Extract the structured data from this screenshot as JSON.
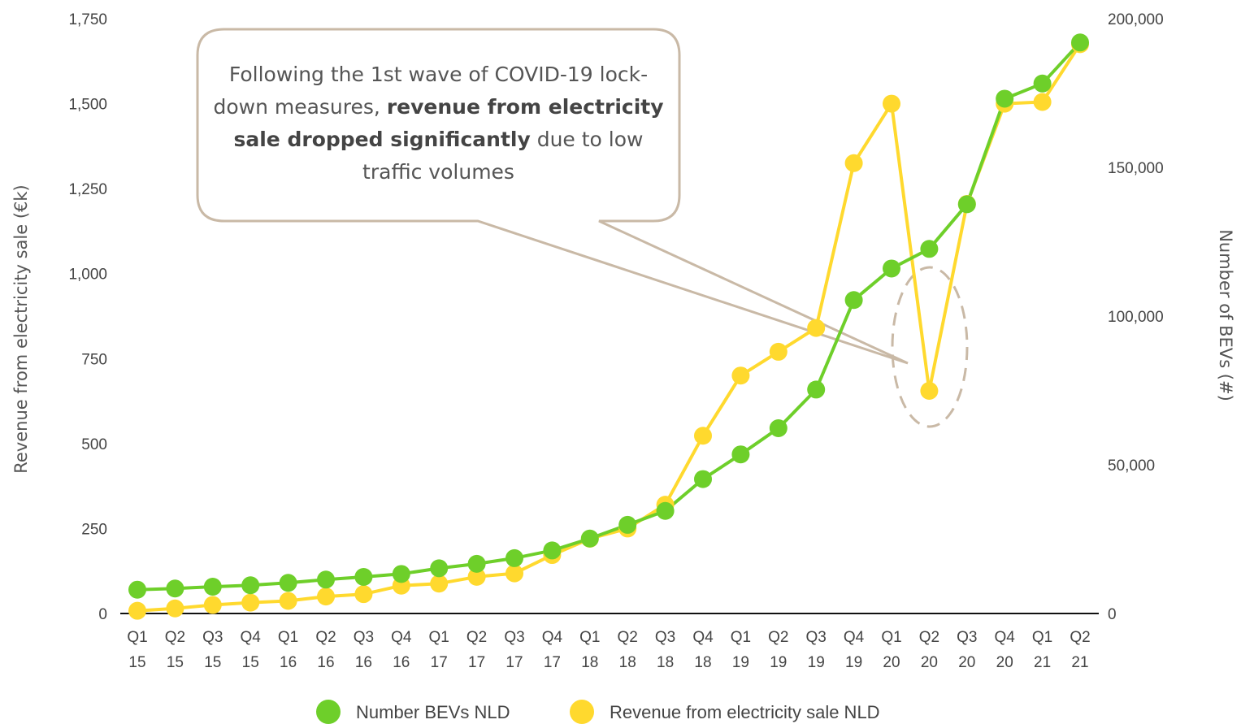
{
  "chart_data": {
    "type": "line",
    "x_top": [
      "Q1",
      "Q2",
      "Q3",
      "Q4",
      "Q1",
      "Q2",
      "Q3",
      "Q4",
      "Q1",
      "Q2",
      "Q3",
      "Q4",
      "Q1",
      "Q2",
      "Q3",
      "Q4",
      "Q1",
      "Q2",
      "Q3",
      "Q4",
      "Q1",
      "Q2",
      "Q3",
      "Q4",
      "Q1",
      "Q2"
    ],
    "x_bottom": [
      "15",
      "15",
      "15",
      "15",
      "16",
      "16",
      "16",
      "16",
      "17",
      "17",
      "17",
      "17",
      "18",
      "18",
      "18",
      "18",
      "19",
      "19",
      "19",
      "19",
      "20",
      "20",
      "20",
      "20",
      "21",
      "21"
    ],
    "y_left": {
      "label": "Revenue from electricity sale (€k)",
      "ticks": [
        "0",
        "250",
        "500",
        "750",
        "1,000",
        "1,250",
        "1,500",
        "1,750"
      ],
      "range": [
        0,
        1750
      ]
    },
    "y_right": {
      "label": "Number of BEVs (#)",
      "ticks": [
        "0",
        "50,000",
        "100,000",
        "150,000",
        "200,000"
      ],
      "range": [
        0,
        200000
      ]
    },
    "series": [
      {
        "name": "Number BEVs NLD",
        "axis": "right",
        "color": "#6ecf2a",
        "values": [
          8000,
          8400,
          9000,
          9500,
          10300,
          11400,
          12300,
          13300,
          15200,
          16700,
          18600,
          21200,
          25200,
          29800,
          34500,
          45200,
          53500,
          62300,
          75300,
          105400,
          116000,
          122600,
          137600,
          173100,
          178200,
          192000
        ]
      },
      {
        "name": "Revenue from electricity sale NLD",
        "axis": "left",
        "color": "#ffd92e",
        "values": [
          8,
          15,
          25,
          32,
          37,
          50,
          57,
          82,
          88,
          108,
          118,
          172,
          220,
          250,
          320,
          523,
          700,
          770,
          840,
          1325,
          1500,
          655,
          1205,
          1500,
          1505,
          1675
        ]
      }
    ],
    "annotation": {
      "part1": "Following the 1st wave of COVID-19 lock-down measures, ",
      "bold": "revenue from electricity sale dropped significantly",
      "part2": " due to low traffic volumes"
    },
    "legend_position": "bottom",
    "grid": false
  }
}
